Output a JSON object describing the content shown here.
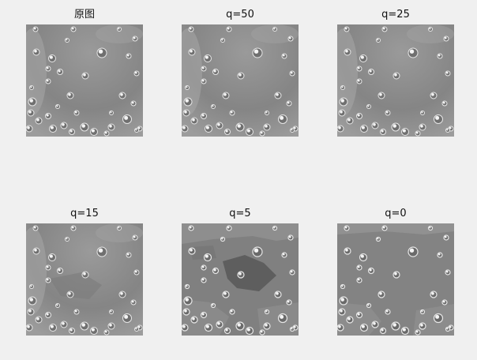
{
  "figure": {
    "panels": [
      {
        "title": "原图",
        "variant": "original"
      },
      {
        "title": "q=50",
        "variant": "q50"
      },
      {
        "title": "q=25",
        "variant": "q25"
      },
      {
        "title": "q=15",
        "variant": "q15"
      },
      {
        "title": "q=5",
        "variant": "q5"
      },
      {
        "title": "q=0",
        "variant": "q0"
      }
    ]
  }
}
